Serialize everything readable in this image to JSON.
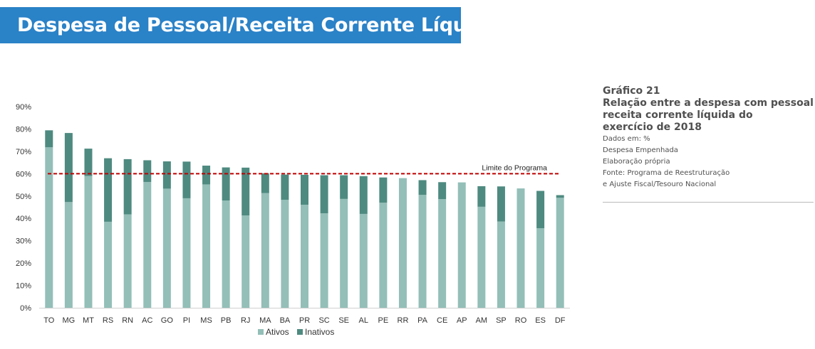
{
  "header": {
    "title": "Despesa de Pessoal/Receita Corrente Líquida"
  },
  "sidebar": {
    "chart_number": "Gráfico 21",
    "caption_lines": [
      "Relação entre a despesa com pessoal e a",
      "receita corrente líquida do",
      "exercício de 2018"
    ],
    "meta_lines": [
      "Dados em:  %",
      "Despesa Empenhada",
      "Elaboração própria",
      "Fonte: Programa de Reestruturação",
      "e Ajuste Fiscal/Tesouro Nacional"
    ]
  },
  "chart_data": {
    "type": "bar",
    "stacked": true,
    "categories": [
      "TO",
      "MG",
      "MT",
      "RS",
      "RN",
      "AC",
      "GO",
      "PI",
      "MS",
      "PB",
      "RJ",
      "MA",
      "BA",
      "PR",
      "SC",
      "SE",
      "AL",
      "PE",
      "RR",
      "PA",
      "CE",
      "AP",
      "AM",
      "SP",
      "RO",
      "ES",
      "DF"
    ],
    "series": [
      {
        "name": "Ativos",
        "color": "#93bfb8",
        "values": [
          71.8,
          47.3,
          59.0,
          38.5,
          41.8,
          56.3,
          53.3,
          49.0,
          55.2,
          48.0,
          41.3,
          51.3,
          48.3,
          46.1,
          42.3,
          48.7,
          42.0,
          47.0,
          58.0,
          50.5,
          48.6,
          56.1,
          45.2,
          38.6,
          53.4,
          35.6,
          49.2
        ]
      },
      {
        "name": "Inativos",
        "color": "#4e8a80",
        "values": [
          7.6,
          30.9,
          12.2,
          28.4,
          24.7,
          9.7,
          12.2,
          16.4,
          8.4,
          14.8,
          21.4,
          8.9,
          11.3,
          13.4,
          17.0,
          10.6,
          16.9,
          11.3,
          0.0,
          6.6,
          7.6,
          0.0,
          9.2,
          15.7,
          0.0,
          16.7,
          1.2
        ]
      }
    ],
    "ylim": [
      0,
      90
    ],
    "yticks": [
      0,
      10,
      20,
      30,
      40,
      50,
      60,
      70,
      80,
      90
    ],
    "ytick_labels": [
      "0%",
      "10%",
      "20%",
      "30%",
      "40%",
      "50%",
      "60%",
      "70%",
      "80%",
      "90%"
    ],
    "reference_line": {
      "value": 60,
      "label": "Limite do Programa",
      "color": "#c00000"
    },
    "legend": {
      "position": "bottom"
    },
    "grid": false
  }
}
